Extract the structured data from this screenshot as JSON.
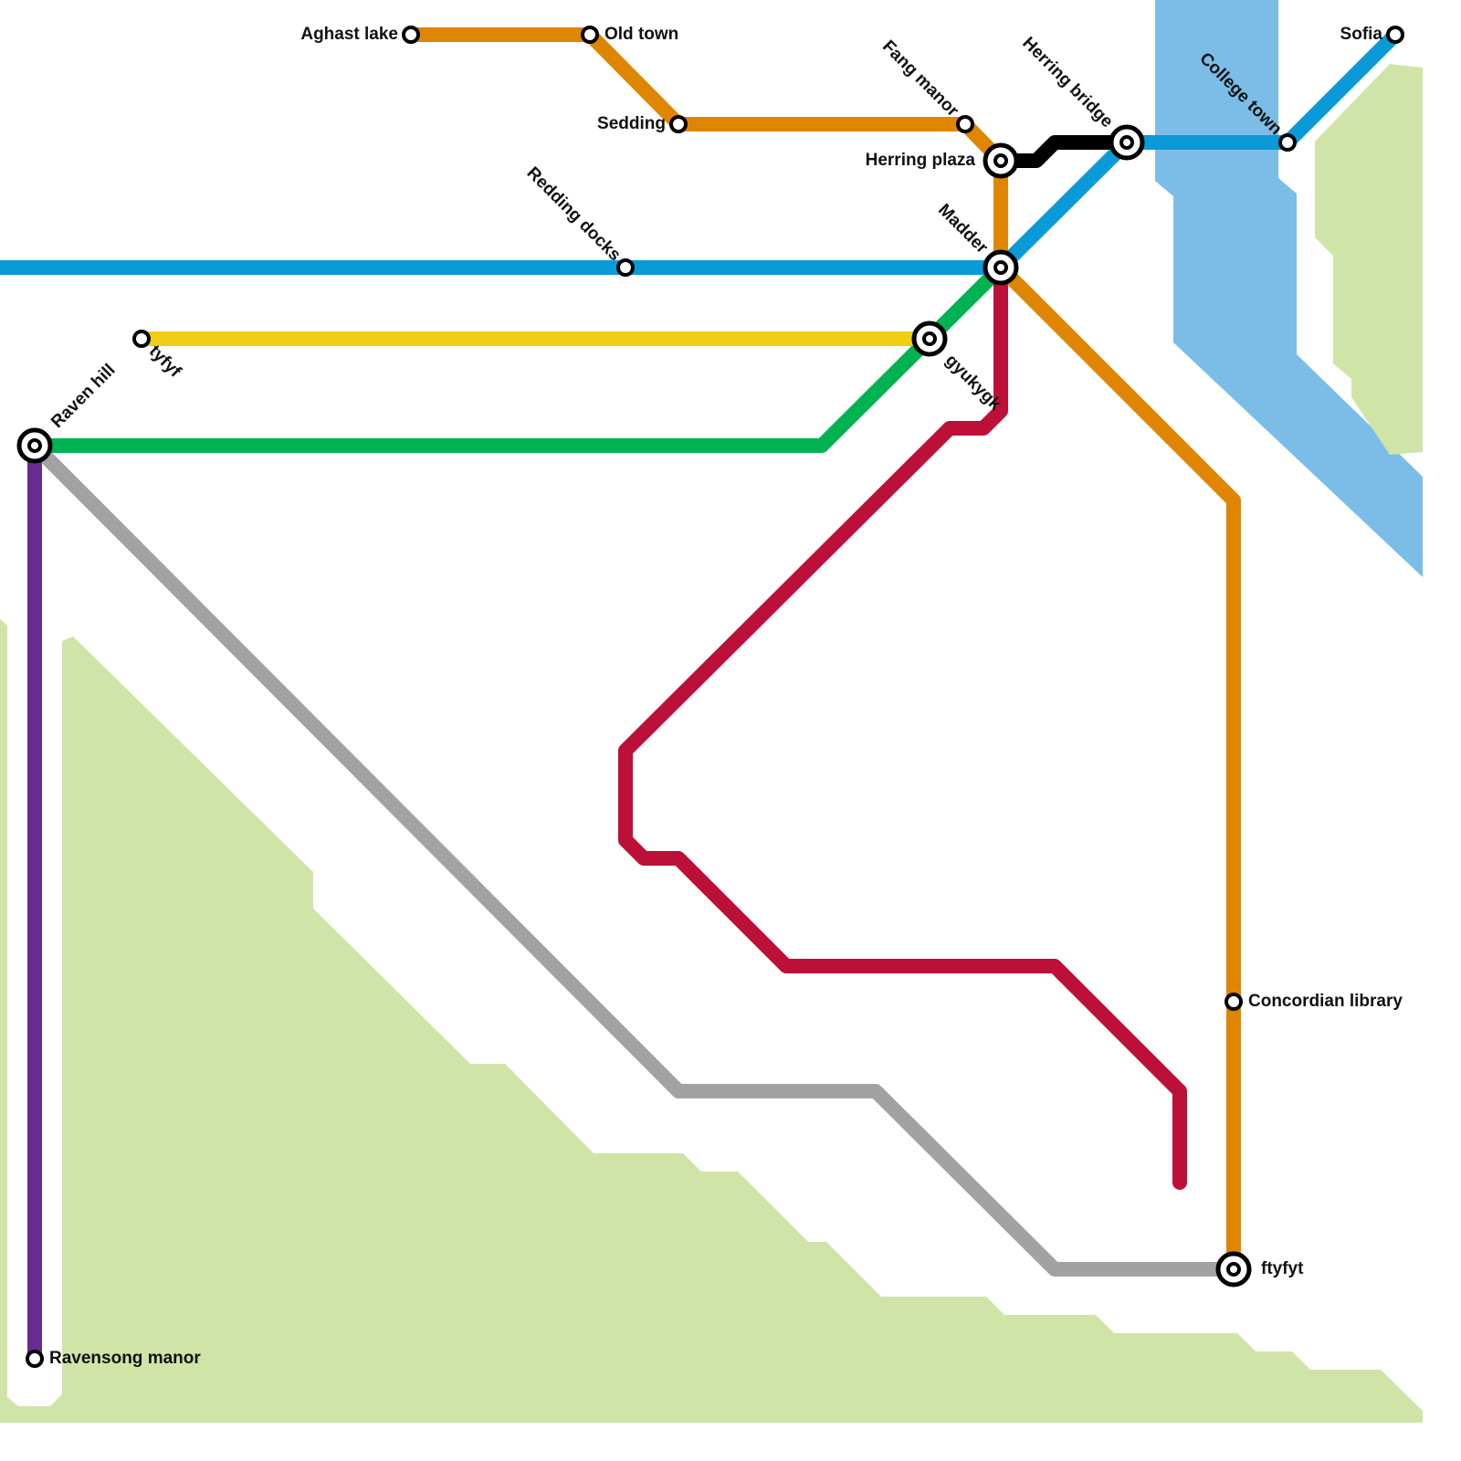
{
  "stations": [
    {
      "label": "Aghast lake"
    },
    {
      "label": "Old town"
    },
    {
      "label": "Sedding"
    },
    {
      "label": "Fang manor"
    },
    {
      "label": "Herring plaza"
    },
    {
      "label": "Herring bridge"
    },
    {
      "label": "College town"
    },
    {
      "label": "Sofia"
    },
    {
      "label": "Redding docks"
    },
    {
      "label": "Madder"
    },
    {
      "label": "tyfyf"
    },
    {
      "label": "gyukygk"
    },
    {
      "label": "Raven hill"
    },
    {
      "label": "Ravensong manor"
    },
    {
      "label": "Concordian library"
    },
    {
      "label": "ftyfyt"
    }
  ]
}
